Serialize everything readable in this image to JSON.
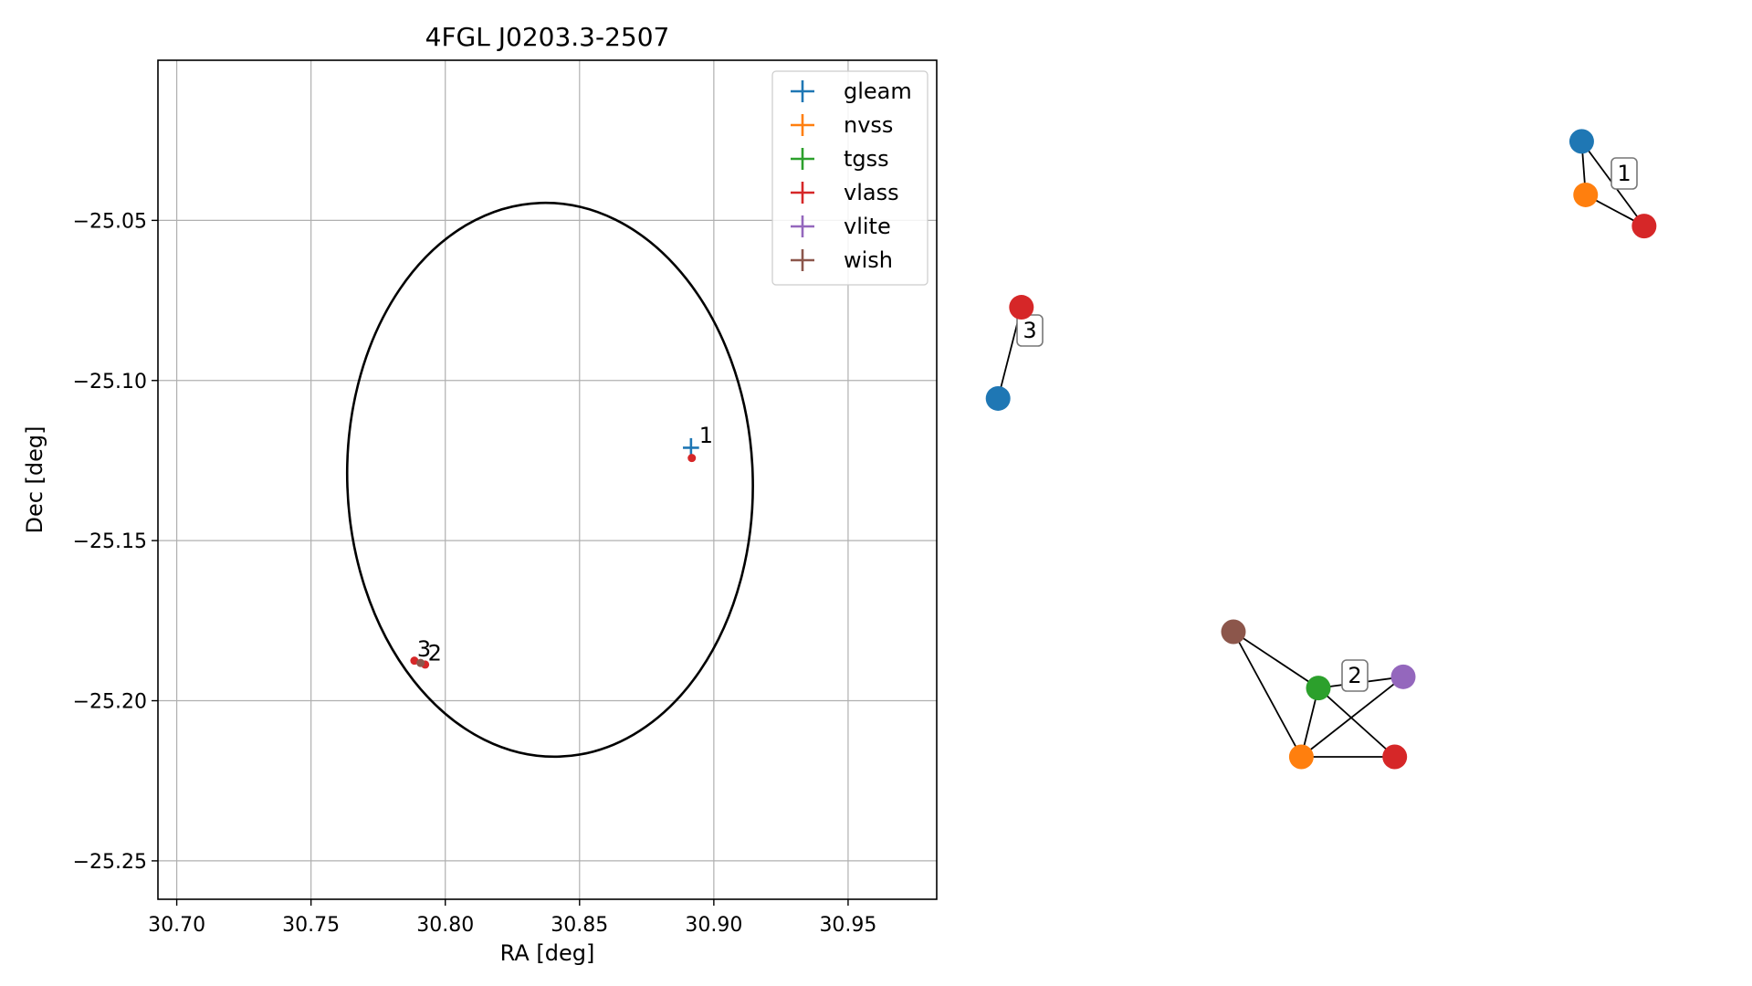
{
  "chart_data": [
    {
      "type": "scatter",
      "title": "4FGL J0203.3-2507",
      "xlabel": "RA [deg]",
      "ylabel": "Dec [deg]",
      "xlim": [
        30.693,
        30.983
      ],
      "ylim": [
        -25.262,
        -25.0
      ],
      "xticks": [
        30.7,
        30.75,
        30.8,
        30.85,
        30.9,
        30.95
      ],
      "xtick_labels": [
        "30.70",
        "30.75",
        "30.80",
        "30.85",
        "30.90",
        "30.95"
      ],
      "yticks": [
        -25.05,
        -25.1,
        -25.15,
        -25.2,
        -25.25
      ],
      "ytick_labels": [
        "−25.05",
        "−25.10",
        "−25.15",
        "−25.20",
        "−25.25"
      ],
      "grid": true,
      "legend_position": "top-right",
      "series": [
        {
          "name": "gleam",
          "color": "#1f77b4",
          "marker": "errorbar",
          "points": [
            {
              "x": 30.8915,
              "y": -25.121,
              "xerr": 0.003,
              "yerr": 0.003
            }
          ]
        },
        {
          "name": "nvss",
          "color": "#ff7f0e",
          "marker": "errorbar",
          "points": []
        },
        {
          "name": "tgss",
          "color": "#2ca02c",
          "marker": "errorbar",
          "points": []
        },
        {
          "name": "vlass",
          "color": "#d62728",
          "marker": "errorbar",
          "points": [
            {
              "x": 30.8918,
              "y": -25.1242
            },
            {
              "x": 30.7885,
              "y": -25.1875
            },
            {
              "x": 30.7925,
              "y": -25.1887
            }
          ]
        },
        {
          "name": "vlite",
          "color": "#9467bd",
          "marker": "errorbar",
          "points": []
        },
        {
          "name": "wish",
          "color": "#8c564b",
          "marker": "errorbar",
          "points": [
            {
              "x": 30.7908,
              "y": -25.1882
            }
          ]
        }
      ],
      "ellipse": {
        "center_x": 30.839,
        "center_y": -25.131,
        "semi_ra": 0.0755,
        "semi_dec": 0.0865,
        "angle_deg": 2,
        "color": "#000000"
      },
      "annotations": [
        {
          "text": "1",
          "x": 30.8945,
          "y": -25.1195
        },
        {
          "text": "3",
          "x": 30.7895,
          "y": -25.1862
        },
        {
          "text": "2",
          "x": 30.7935,
          "y": -25.1875
        }
      ]
    },
    {
      "type": "network",
      "components": [
        {
          "label": "1",
          "nodes": [
            {
              "id": "gleam",
              "color": "#1f77b4",
              "x": 0.02,
              "y": 0.96
            },
            {
              "id": "nvss",
              "color": "#ff7f0e",
              "x": 0.08,
              "y": 0.48
            },
            {
              "id": "vlass",
              "color": "#d62728",
              "x": 0.97,
              "y": 0.2
            }
          ],
          "edges": [
            [
              "gleam",
              "nvss"
            ],
            [
              "gleam",
              "vlass"
            ],
            [
              "nvss",
              "vlass"
            ]
          ]
        },
        {
          "label": "3",
          "nodes": [
            {
              "id": "vlass",
              "color": "#d62728",
              "x": 0.9,
              "y": 0.95
            },
            {
              "id": "gleam",
              "color": "#1f77b4",
              "x": 0.1,
              "y": 0.05
            }
          ],
          "edges": [
            [
              "vlass",
              "gleam"
            ]
          ]
        },
        {
          "label": "2",
          "nodes": [
            {
              "id": "wish",
              "color": "#8c564b",
              "x": 0.0,
              "y": 1.0
            },
            {
              "id": "tgss",
              "color": "#2ca02c",
              "x": 0.5,
              "y": 0.55
            },
            {
              "id": "vlite",
              "color": "#9467bd",
              "x": 1.0,
              "y": 0.64
            },
            {
              "id": "nvss",
              "color": "#ff7f0e",
              "x": 0.4,
              "y": 0.0
            },
            {
              "id": "vlass",
              "color": "#d62728",
              "x": 0.95,
              "y": 0.0
            }
          ],
          "edges": [
            [
              "wish",
              "tgss"
            ],
            [
              "wish",
              "nvss"
            ],
            [
              "tgss",
              "nvss"
            ],
            [
              "tgss",
              "vlass"
            ],
            [
              "tgss",
              "vlite"
            ],
            [
              "nvss",
              "vlite"
            ],
            [
              "nvss",
              "vlass"
            ]
          ]
        }
      ]
    }
  ]
}
